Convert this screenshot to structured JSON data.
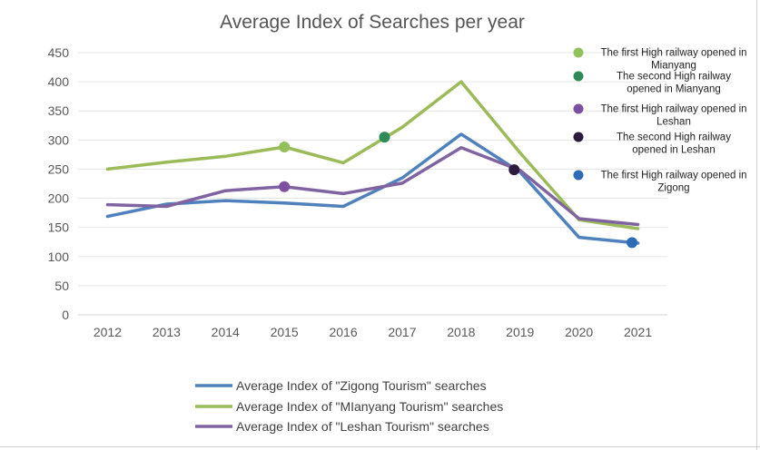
{
  "chart_data": {
    "type": "line",
    "title": "Average Index of Searches per year",
    "xlabel": "",
    "ylabel": "",
    "categories": [
      "2012",
      "2013",
      "2014",
      "2015",
      "2016",
      "2017",
      "2018",
      "2019",
      "2020",
      "2021"
    ],
    "ylim": [
      0,
      450
    ],
    "yticks": [
      0,
      50,
      100,
      150,
      200,
      250,
      300,
      350,
      400,
      450
    ],
    "grid": true,
    "legend_position": "bottom",
    "series": [
      {
        "name": "Average Index of \"Zigong Tourism\" searches",
        "color": "#4f81bd",
        "values": [
          169,
          190,
          196,
          192,
          186,
          235,
          310,
          245,
          133,
          123
        ]
      },
      {
        "name": "Average Index of \"MIanyang Tourism\" searches",
        "color": "#9bbb59",
        "values": [
          250,
          262,
          272,
          288,
          261,
          322,
          400,
          278,
          163,
          148
        ]
      },
      {
        "name": "Average Index of \"Leshan Tourism\" searches",
        "color": "#8064a2",
        "values": [
          189,
          186,
          213,
          220,
          208,
          226,
          287,
          248,
          165,
          155
        ]
      }
    ],
    "annotations": [
      {
        "lines": [
          "The first High railway opened in",
          "Mianyang"
        ],
        "color": "#92c15b",
        "x": 2015.0,
        "y": 288
      },
      {
        "lines": [
          "The second High railway",
          "opened in Mianyang"
        ],
        "color": "#2e8b57",
        "x": 2016.7,
        "y": 305
      },
      {
        "lines": [
          "The first High railway opened in",
          "Leshan"
        ],
        "color": "#7d4fa0",
        "x": 2015.0,
        "y": 220
      },
      {
        "lines": [
          "The second High railway",
          "opened in Leshan"
        ],
        "color": "#2d1b3f",
        "x": 2018.9,
        "y": 249
      },
      {
        "lines": [
          "The first High railway opened in",
          "Zigong"
        ],
        "color": "#2f6cb7",
        "x": 2020.9,
        "y": 124
      }
    ]
  }
}
